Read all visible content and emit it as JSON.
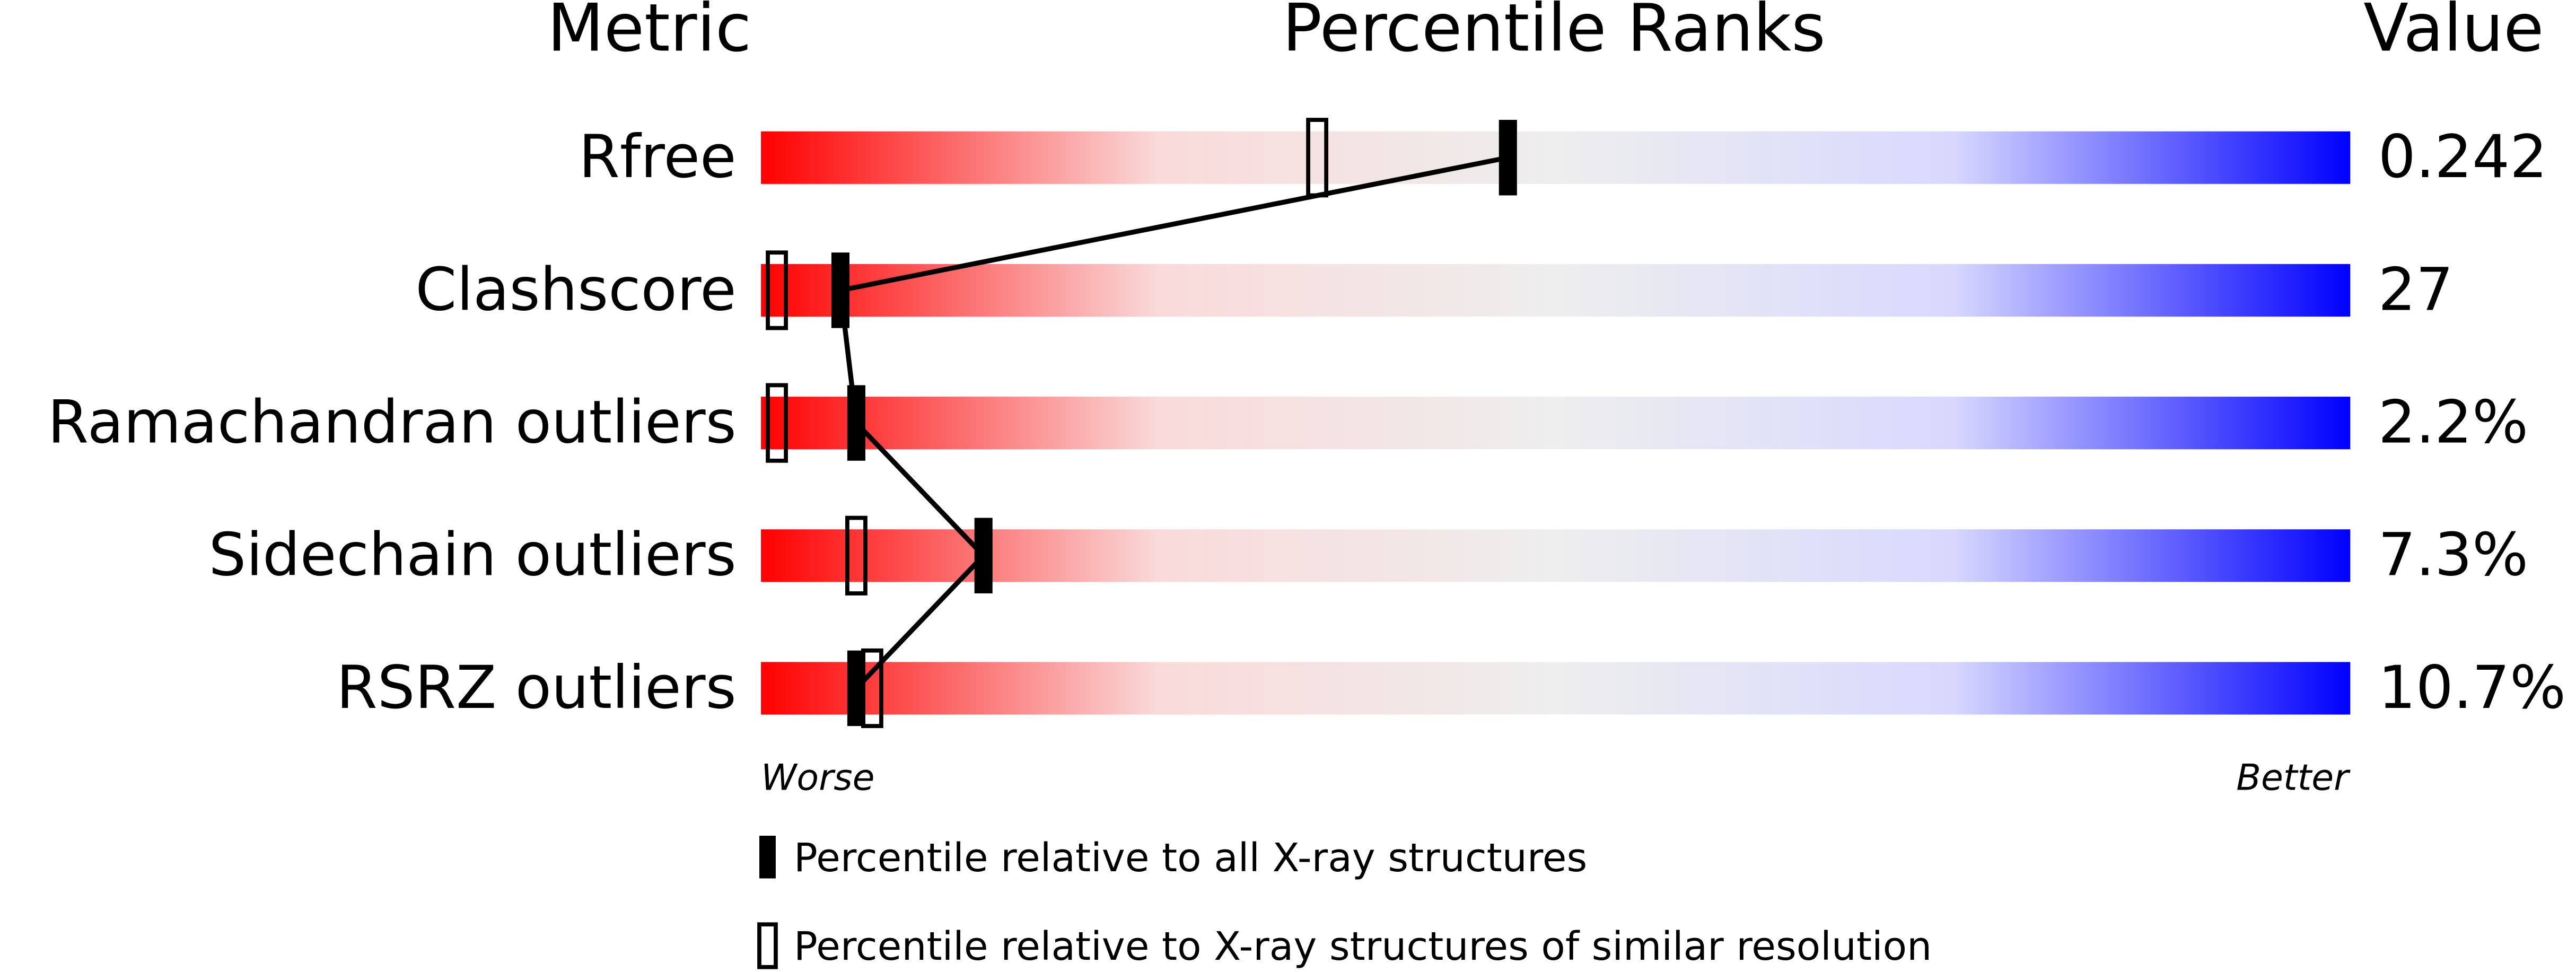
{
  "chart_data": {
    "type": "percentile",
    "metric_header": "Metric",
    "title": "Percentile Ranks",
    "value_header": "Value",
    "categories": [
      "Rfree",
      "Clashscore",
      "Ramachandran outliers",
      "Sidechain outliers",
      "RSRZ outliers"
    ],
    "metric_values": [
      "0.242",
      "27",
      "2.2%",
      "7.3%",
      "10.7%"
    ],
    "series": [
      {
        "name": "Percentile relative to all X-ray structures",
        "color": "#000000",
        "style": "filled",
        "values": [
          47,
          5,
          6,
          14,
          6
        ]
      },
      {
        "name": "Percentile relative to X-ray structures of similar resolution",
        "color": "#000000",
        "style": "hollow",
        "values": [
          35,
          1,
          1,
          6,
          7
        ]
      }
    ],
    "xlim": [
      0,
      100
    ],
    "axis_left_label": "Worse",
    "axis_right_label": "Better",
    "gradient": [
      "#ff0000",
      "#fadada",
      "#eeeeee",
      "#d8d8ff",
      "#0000ff"
    ]
  }
}
